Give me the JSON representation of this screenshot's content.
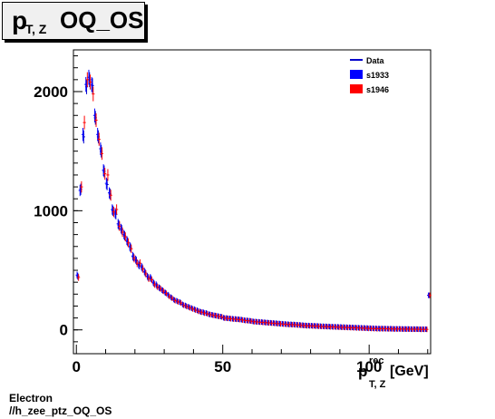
{
  "title": {
    "main": "p",
    "subscript": "T, Z",
    "rest": "OQ_OS"
  },
  "footer": {
    "line1": "Electron",
    "line2": "//h_zee_ptz_OQ_OS"
  },
  "chart_data": {
    "type": "scatter",
    "xlabel": {
      "main": "p",
      "superscript": "rec",
      "subscript": "T, Z",
      "unit": "[GeV]"
    },
    "xlim": [
      -1,
      121
    ],
    "ylim": [
      -200,
      2350
    ],
    "xticks": [
      0,
      50,
      100
    ],
    "yticks": [
      0,
      1000,
      2000
    ],
    "grid": false,
    "legend_position": "top-right",
    "series": [
      {
        "name": "Data",
        "color": "#0000cc",
        "x": [
          0.5,
          1.5,
          2.5,
          3.5,
          4.5,
          5.5,
          6.5,
          7.5,
          8.5,
          9.5,
          10.5,
          11.5,
          12.5,
          13.5,
          14.5,
          15.5,
          16.5,
          17.5,
          18.5,
          19.5,
          20.5,
          21.5,
          22.5,
          23.5,
          24.5,
          25.5,
          26.5,
          27.5,
          28.5,
          29.5,
          30.5,
          31.5,
          32.5,
          33.5,
          34.5,
          35.5,
          36.5,
          37.5,
          38.5,
          39.5,
          40.5,
          41.5,
          42.5,
          43.5,
          44.5,
          45.5,
          46.5,
          47.5,
          48.5,
          49.5,
          50.5,
          51.5,
          52.5,
          53.5,
          54.5,
          55.5,
          56.5,
          57.5,
          58.5,
          59.5,
          60.5,
          61.5,
          62.5,
          63.5,
          64.5,
          65.5,
          66.5,
          67.5,
          68.5,
          69.5,
          70.5,
          71.5,
          72.5,
          73.5,
          74.5,
          75.5,
          76.5,
          77.5,
          78.5,
          79.5,
          80.5,
          81.5,
          82.5,
          83.5,
          84.5,
          85.5,
          86.5,
          87.5,
          88.5,
          89.5,
          90.5,
          91.5,
          92.5,
          93.5,
          94.5,
          95.5,
          96.5,
          97.5,
          98.5,
          99.5,
          100.5,
          101.5,
          102.5,
          103.5,
          104.5,
          105.5,
          106.5,
          107.5,
          108.5,
          109.5,
          110.5,
          111.5,
          112.5,
          113.5,
          114.5,
          115.5,
          116.5,
          117.5,
          118.5,
          119.5,
          120.5
        ],
        "y": [
          450,
          1180,
          1620,
          2040,
          2100,
          2050,
          1780,
          1620,
          1500,
          1330,
          1220,
          1140,
          1000,
          970,
          880,
          840,
          790,
          740,
          690,
          610,
          580,
          540,
          520,
          480,
          440,
          430,
          390,
          370,
          350,
          330,
          310,
          290,
          270,
          250,
          240,
          230,
          210,
          200,
          190,
          180,
          170,
          160,
          150,
          145,
          140,
          130,
          125,
          120,
          115,
          110,
          100,
          98,
          95,
          92,
          90,
          88,
          85,
          80,
          78,
          75,
          70,
          68,
          66,
          64,
          62,
          60,
          58,
          56,
          54,
          52,
          50,
          48,
          46,
          45,
          44,
          42,
          40,
          38,
          36,
          35,
          34,
          33,
          32,
          30,
          29,
          28,
          27,
          26,
          25,
          24,
          23,
          22,
          21,
          20,
          19,
          18,
          17,
          16,
          15,
          14,
          13,
          12,
          11,
          10,
          10,
          10,
          9,
          9,
          8,
          8,
          8,
          7,
          7,
          7,
          6,
          6,
          6,
          5,
          5,
          5,
          290
        ]
      },
      {
        "name": "s1933",
        "color": "#0000ff",
        "x": [
          0.5,
          1.5,
          2.5,
          3.5,
          4.5,
          5.5,
          6.5,
          7.5,
          8.5,
          9.5,
          10.5,
          11.5,
          12.5,
          13.5,
          14.5,
          15.5,
          16.5,
          17.5,
          18.5,
          19.5,
          20.5,
          21.5,
          22.5,
          23.5,
          24.5,
          25.5,
          26.5,
          27.5,
          28.5,
          29.5,
          30.5,
          31.5,
          32.5,
          33.5,
          34.5,
          35.5,
          36.5,
          37.5,
          38.5,
          39.5,
          40.5,
          41.5,
          42.5,
          43.5,
          44.5,
          45.5,
          46.5,
          47.5,
          48.5,
          49.5,
          50.5,
          51.5,
          52.5,
          53.5,
          54.5,
          55.5,
          56.5,
          57.5,
          58.5,
          59.5,
          60.5,
          61.5,
          62.5,
          63.5,
          64.5,
          65.5,
          66.5,
          67.5,
          68.5,
          69.5,
          70.5,
          71.5,
          72.5,
          73.5,
          74.5,
          75.5,
          76.5,
          77.5,
          78.5,
          79.5,
          80.5,
          81.5,
          82.5,
          83.5,
          84.5,
          85.5,
          86.5,
          87.5,
          88.5,
          89.5,
          90.5,
          91.5,
          92.5,
          93.5,
          94.5,
          95.5,
          96.5,
          97.5,
          98.5,
          99.5,
          100.5,
          101.5,
          102.5,
          103.5,
          104.5,
          105.5,
          106.5,
          107.5,
          108.5,
          109.5,
          110.5,
          111.5,
          112.5,
          113.5,
          114.5,
          115.5,
          116.5,
          117.5,
          118.5,
          119.5,
          120.5
        ],
        "y": [
          460,
          1170,
          1640,
          2060,
          2120,
          2060,
          1800,
          1640,
          1520,
          1340,
          1230,
          1150,
          1010,
          980,
          890,
          850,
          800,
          750,
          700,
          620,
          590,
          550,
          530,
          490,
          450,
          440,
          400,
          380,
          355,
          335,
          315,
          295,
          275,
          255,
          245,
          235,
          215,
          205,
          195,
          185,
          175,
          165,
          155,
          150,
          142,
          132,
          127,
          122,
          117,
          112,
          102,
          100,
          97,
          94,
          92,
          90,
          87,
          82,
          80,
          77,
          72,
          70,
          68,
          66,
          64,
          62,
          60,
          58,
          56,
          54,
          52,
          50,
          48,
          47,
          46,
          44,
          42,
          40,
          38,
          37,
          36,
          35,
          34,
          32,
          31,
          30,
          29,
          28,
          27,
          26,
          25,
          24,
          23,
          22,
          21,
          20,
          19,
          18,
          17,
          16,
          15,
          14,
          13,
          12,
          12,
          11,
          10,
          10,
          9,
          9,
          9,
          8,
          8,
          8,
          7,
          7,
          7,
          6,
          6,
          6,
          290
        ]
      },
      {
        "name": "s1946",
        "color": "#ff0000",
        "x": [
          0.5,
          1.5,
          2.5,
          3.5,
          4.5,
          5.5,
          6.5,
          7.5,
          8.5,
          9.5,
          10.5,
          11.5,
          12.5,
          13.5,
          14.5,
          15.5,
          16.5,
          17.5,
          18.5,
          19.5,
          20.5,
          21.5,
          22.5,
          23.5,
          24.5,
          25.5,
          26.5,
          27.5,
          28.5,
          29.5,
          30.5,
          31.5,
          32.5,
          33.5,
          34.5,
          35.5,
          36.5,
          37.5,
          38.5,
          39.5,
          40.5,
          41.5,
          42.5,
          43.5,
          44.5,
          45.5,
          46.5,
          47.5,
          48.5,
          49.5,
          50.5,
          51.5,
          52.5,
          53.5,
          54.5,
          55.5,
          56.5,
          57.5,
          58.5,
          59.5,
          60.5,
          61.5,
          62.5,
          63.5,
          64.5,
          65.5,
          66.5,
          67.5,
          68.5,
          69.5,
          70.5,
          71.5,
          72.5,
          73.5,
          74.5,
          75.5,
          76.5,
          77.5,
          78.5,
          79.5,
          80.5,
          81.5,
          82.5,
          83.5,
          84.5,
          85.5,
          86.5,
          87.5,
          88.5,
          89.5,
          90.5,
          91.5,
          92.5,
          93.5,
          94.5,
          95.5,
          96.5,
          97.5,
          98.5,
          99.5,
          100.5,
          101.5,
          102.5,
          103.5,
          104.5,
          105.5,
          106.5,
          107.5,
          108.5,
          109.5,
          110.5,
          111.5,
          112.5,
          113.5,
          114.5,
          115.5,
          116.5,
          117.5,
          118.5,
          119.5,
          120.5
        ],
        "y": [
          440,
          1200,
          1740,
          2100,
          2080,
          1980,
          1760,
          1600,
          1480,
          1310,
          1300,
          1130,
          990,
          1010,
          870,
          820,
          780,
          730,
          680,
          600,
          560,
          560,
          510,
          470,
          430,
          420,
          380,
          360,
          345,
          325,
          305,
          280,
          265,
          245,
          235,
          225,
          205,
          195,
          185,
          175,
          165,
          155,
          148,
          140,
          135,
          128,
          122,
          118,
          112,
          108,
          98,
          96,
          93,
          90,
          88,
          86,
          83,
          78,
          76,
          73,
          68,
          66,
          64,
          62,
          60,
          58,
          56,
          54,
          52,
          50,
          48,
          46,
          44,
          43,
          42,
          40,
          38,
          36,
          34,
          33,
          32,
          31,
          30,
          28,
          27,
          26,
          25,
          24,
          23,
          22,
          21,
          20,
          19,
          18,
          17,
          16,
          15,
          14,
          13,
          12,
          11,
          10,
          9,
          9,
          9,
          9,
          8,
          8,
          7,
          7,
          7,
          6,
          6,
          6,
          5,
          5,
          5,
          4,
          4,
          4,
          290
        ]
      }
    ]
  }
}
